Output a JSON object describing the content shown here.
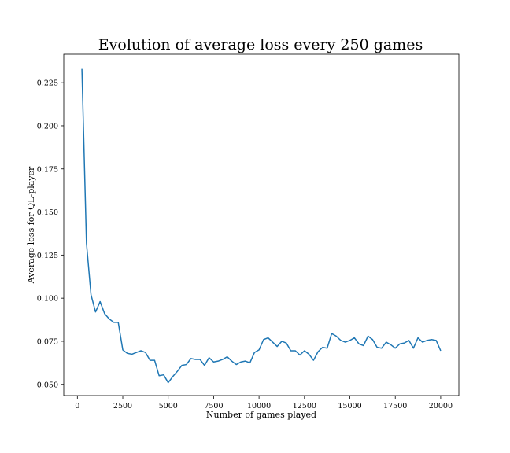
{
  "chart_data": {
    "type": "line",
    "title": "Evolution of average loss every 250 games",
    "xlabel": "Number of games played",
    "ylabel": "Average loss for QL-player",
    "xlim": [
      -750,
      21000
    ],
    "ylim": [
      0.0435,
      0.2415
    ],
    "xticks": [
      0,
      2500,
      5000,
      7500,
      10000,
      12500,
      15000,
      17500,
      20000
    ],
    "xtick_labels": [
      "0",
      "2500",
      "5000",
      "7500",
      "10000",
      "12500",
      "15000",
      "17500",
      "20000"
    ],
    "yticks": [
      0.05,
      0.075,
      0.1,
      0.125,
      0.15,
      0.175,
      0.2,
      0.225
    ],
    "ytick_labels": [
      "0.050",
      "0.075",
      "0.100",
      "0.125",
      "0.150",
      "0.175",
      "0.200",
      "0.225"
    ],
    "grid": false,
    "color": "#1f77b4",
    "series": [
      {
        "x": [
          250,
          500,
          750,
          1000,
          1250,
          1500,
          1750,
          2000,
          2250,
          2500,
          2750,
          3000,
          3250,
          3500,
          3750,
          4000,
          4250,
          4500,
          4750,
          5000,
          5250,
          5500,
          5750,
          6000,
          6250,
          6500,
          6750,
          7000,
          7250,
          7500,
          7750,
          8000,
          8250,
          8500,
          8750,
          9000,
          9250,
          9500,
          9750,
          10000,
          10250,
          10500,
          10750,
          11000,
          11250,
          11500,
          11750,
          12000,
          12250,
          12500,
          12750,
          13000,
          13250,
          13500,
          13750,
          14000,
          14250,
          14500,
          14750,
          15000,
          15250,
          15500,
          15750,
          16000,
          16250,
          16500,
          16750,
          17000,
          17250,
          17500,
          17750,
          18000,
          18250,
          18500,
          18750,
          19000,
          19250,
          19500,
          19750,
          20000
        ],
        "y": [
          0.233,
          0.132,
          0.102,
          0.092,
          0.098,
          0.091,
          0.088,
          0.086,
          0.086,
          0.07,
          0.068,
          0.0675,
          0.0685,
          0.0695,
          0.0685,
          0.064,
          0.064,
          0.055,
          0.0555,
          0.051,
          0.0545,
          0.0575,
          0.061,
          0.0615,
          0.065,
          0.0645,
          0.0645,
          0.061,
          0.0655,
          0.063,
          0.0635,
          0.0645,
          0.066,
          0.0635,
          0.0615,
          0.063,
          0.0635,
          0.0625,
          0.0685,
          0.07,
          0.076,
          0.077,
          0.0745,
          0.072,
          0.075,
          0.074,
          0.0695,
          0.0695,
          0.067,
          0.0695,
          0.0675,
          0.064,
          0.069,
          0.0715,
          0.071,
          0.0795,
          0.078,
          0.0755,
          0.0745,
          0.0755,
          0.077,
          0.0735,
          0.0725,
          0.078,
          0.076,
          0.0715,
          0.071,
          0.0745,
          0.073,
          0.071,
          0.0735,
          0.074,
          0.0755,
          0.071,
          0.077,
          0.0745,
          0.0755,
          0.076,
          0.0755,
          0.0695
        ]
      }
    ]
  }
}
